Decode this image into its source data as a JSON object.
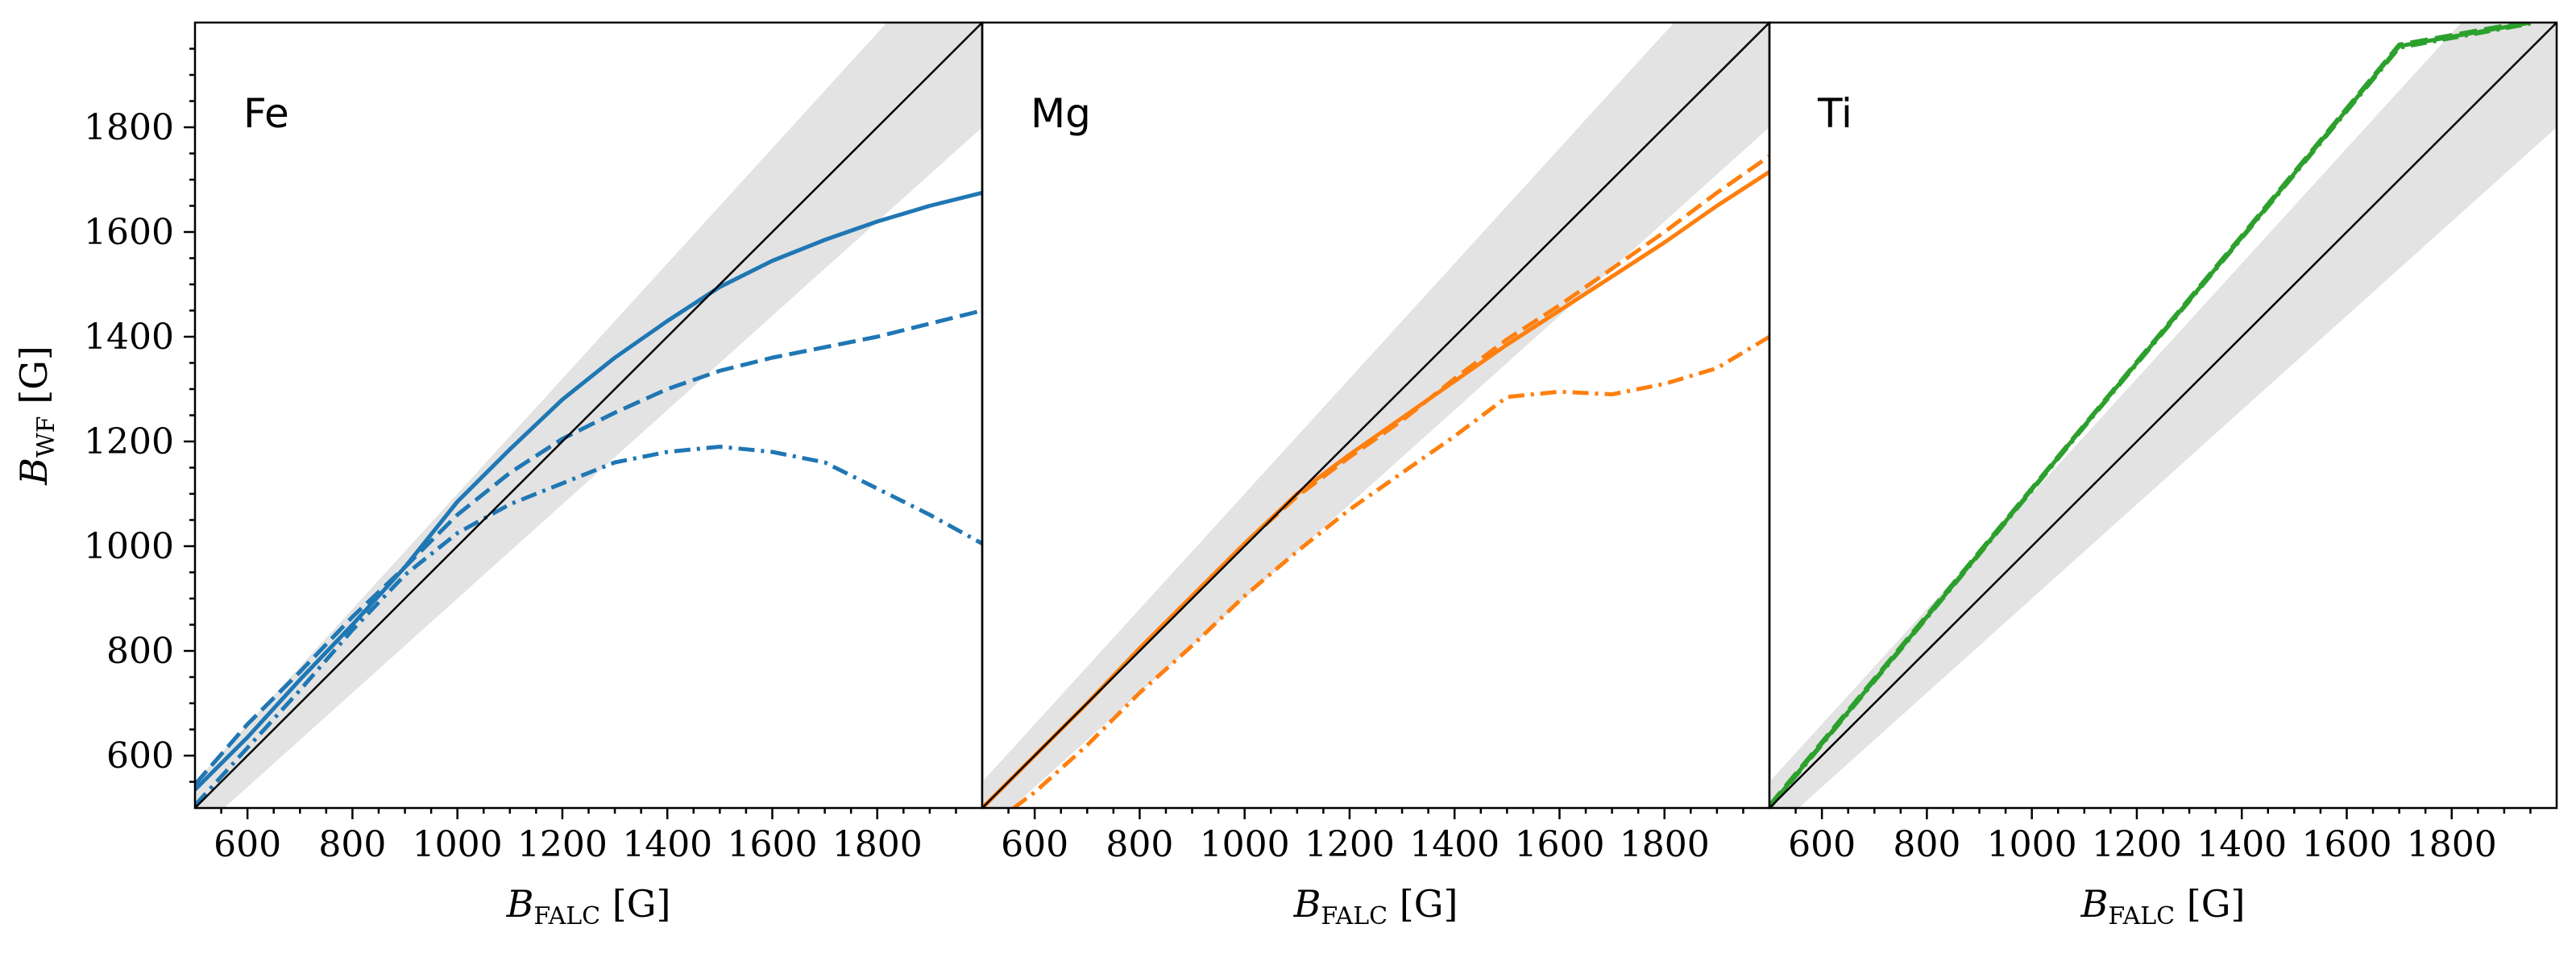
{
  "chart_data": [
    {
      "type": "line",
      "panel_label": "Fe",
      "xlabel_main": "B",
      "xlabel_sub": "FALC",
      "xlabel_unit": " [G]",
      "ylabel_main": "B",
      "ylabel_sub": "WF",
      "ylabel_unit": " [G]",
      "xlim": [
        500,
        2000
      ],
      "ylim": [
        500,
        2000
      ],
      "xticks": [
        "600",
        "800",
        "1000",
        "1200",
        "1400",
        "1600",
        "1800"
      ],
      "yticks": [
        "600",
        "800",
        "1000",
        "1200",
        "1400",
        "1600",
        "1800"
      ],
      "color": "#1f77b4",
      "band_fraction": 0.1,
      "series": [
        {
          "name": "solid",
          "style": "solid",
          "x": [
            500,
            600,
            700,
            800,
            900,
            1000,
            1100,
            1200,
            1300,
            1400,
            1500,
            1600,
            1700,
            1800,
            1900,
            2000
          ],
          "y": [
            535,
            635,
            745,
            850,
            960,
            1085,
            1185,
            1280,
            1360,
            1430,
            1495,
            1545,
            1585,
            1620,
            1650,
            1675
          ]
        },
        {
          "name": "dashed",
          "style": "dashed",
          "x": [
            500,
            600,
            700,
            800,
            900,
            1000,
            1100,
            1200,
            1300,
            1400,
            1500,
            1600,
            1700,
            1800,
            1900,
            2000
          ],
          "y": [
            545,
            660,
            760,
            865,
            960,
            1060,
            1140,
            1205,
            1255,
            1300,
            1335,
            1360,
            1380,
            1400,
            1425,
            1450
          ]
        },
        {
          "name": "dashdot",
          "style": "dashdot",
          "x": [
            500,
            600,
            700,
            800,
            900,
            1000,
            1100,
            1200,
            1300,
            1400,
            1500,
            1600,
            1700,
            1800,
            1900,
            2000
          ],
          "y": [
            505,
            615,
            725,
            840,
            945,
            1025,
            1080,
            1120,
            1160,
            1180,
            1190,
            1180,
            1160,
            1110,
            1060,
            1005
          ]
        }
      ]
    },
    {
      "type": "line",
      "panel_label": "Mg",
      "xlabel_main": "B",
      "xlabel_sub": "FALC",
      "xlabel_unit": " [G]",
      "xlim": [
        500,
        2000
      ],
      "ylim": [
        500,
        2000
      ],
      "xticks": [
        "600",
        "800",
        "1000",
        "1200",
        "1400",
        "1600",
        "1800"
      ],
      "color": "#ff7f0e",
      "band_fraction": 0.1,
      "series": [
        {
          "name": "solid",
          "style": "solid",
          "x": [
            500,
            600,
            700,
            800,
            900,
            1000,
            1100,
            1200,
            1300,
            1400,
            1500,
            1600,
            1700,
            1800,
            1900,
            2000
          ],
          "y": [
            500,
            600,
            700,
            805,
            905,
            1005,
            1100,
            1175,
            1245,
            1315,
            1385,
            1450,
            1515,
            1580,
            1650,
            1715
          ]
        },
        {
          "name": "dashed",
          "style": "dashed",
          "x": [
            500,
            600,
            700,
            800,
            900,
            1000,
            1100,
            1200,
            1300,
            1400,
            1500,
            1600,
            1700,
            1800,
            1900,
            2000
          ],
          "y": [
            500,
            600,
            700,
            805,
            905,
            1005,
            1095,
            1170,
            1240,
            1320,
            1395,
            1460,
            1530,
            1600,
            1675,
            1745
          ]
        },
        {
          "name": "dashdot",
          "style": "dashdot",
          "x": [
            560,
            600,
            700,
            800,
            900,
            1000,
            1100,
            1200,
            1300,
            1400,
            1500,
            1600,
            1700,
            1800,
            1900,
            2000
          ],
          "y": [
            500,
            530,
            620,
            720,
            810,
            905,
            990,
            1070,
            1140,
            1210,
            1285,
            1295,
            1290,
            1310,
            1340,
            1400
          ]
        }
      ]
    },
    {
      "type": "line",
      "panel_label": "Ti",
      "xlabel_main": "B",
      "xlabel_sub": "FALC",
      "xlabel_unit": " [G]",
      "xlim": [
        500,
        2000
      ],
      "ylim": [
        500,
        2000
      ],
      "xticks": [
        "600",
        "800",
        "1000",
        "1200",
        "1400",
        "1600",
        "1800"
      ],
      "color": "#2ca02c",
      "band_fraction": 0.1,
      "series": [
        {
          "name": "solid",
          "style": "solid",
          "x": [
            500,
            800,
            1100,
            1400,
            1700,
            1950
          ],
          "y": [
            502,
            865,
            1230,
            1590,
            1955,
            2000
          ]
        },
        {
          "name": "dashed",
          "style": "dashed",
          "x": [
            500,
            800,
            1100,
            1400,
            1700,
            1950
          ],
          "y": [
            505,
            868,
            1232,
            1593,
            1958,
            2003
          ]
        },
        {
          "name": "dashdot",
          "style": "dashdot",
          "x": [
            500,
            800,
            1100,
            1400,
            1700,
            1950
          ],
          "y": [
            500,
            863,
            1228,
            1588,
            1952,
            1998
          ]
        }
      ]
    }
  ]
}
